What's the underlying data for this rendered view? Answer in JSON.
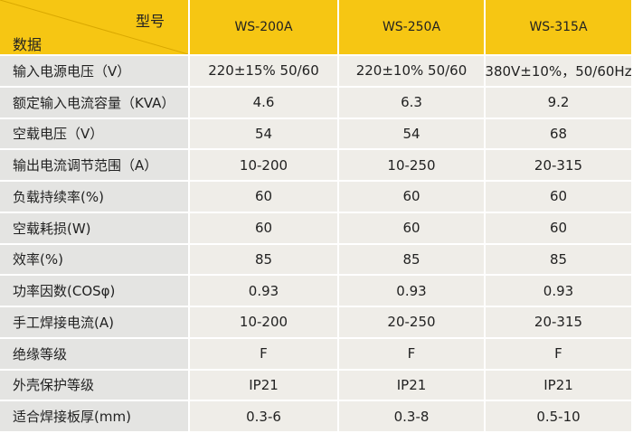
{
  "table": {
    "corner": {
      "top": "型号",
      "bottom": "数据"
    },
    "columns": [
      "WS-200A",
      "WS-250A",
      "WS-315A"
    ],
    "rows": [
      [
        "输入电源电压（V）",
        "220±15% 50/60",
        "220±10% 50/60",
        "380V±10%，50/60Hz"
      ],
      [
        "额定输入电流容量（KVA）",
        "4.6",
        "6.3",
        "9.2"
      ],
      [
        "空载电压（V）",
        "54",
        "54",
        "68"
      ],
      [
        "输出电流调节范围（A）",
        "10-200",
        "10-250",
        "20-315"
      ],
      [
        "负载持续率(%)",
        "60",
        "60",
        "60"
      ],
      [
        "空载耗损(W)",
        "60",
        "60",
        "60"
      ],
      [
        "效率(%)",
        "85",
        "85",
        "85"
      ],
      [
        "功率因数(COSφ)",
        "0.93",
        "0.93",
        "0.93"
      ],
      [
        "手工焊接电流(A)",
        "10-200",
        "20-250",
        "20-315"
      ],
      [
        "绝缘等级",
        "F",
        "F",
        "F"
      ],
      [
        "外壳保护等级",
        "IP21",
        "IP21",
        "IP21"
      ],
      [
        "适合焊接板厚(mm)",
        "0.3-6",
        "0.3-8",
        "0.5-10"
      ]
    ]
  }
}
